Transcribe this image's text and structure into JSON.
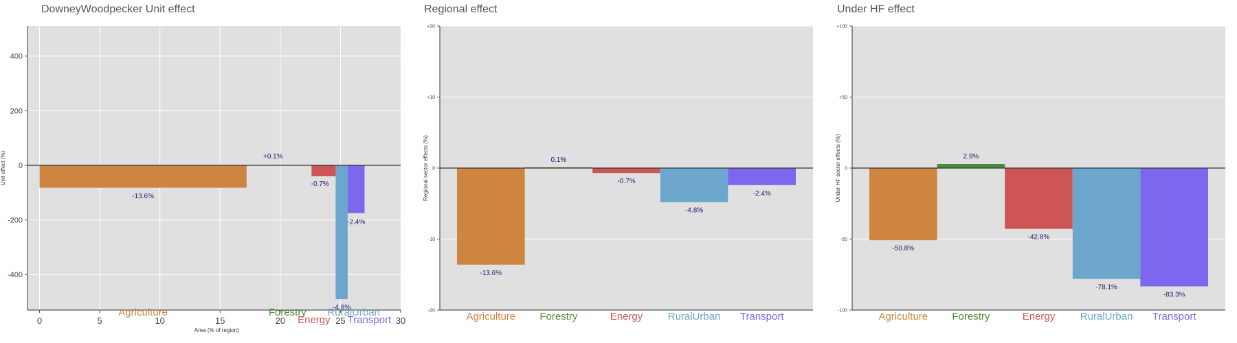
{
  "chart_data": [
    {
      "type": "bar",
      "title": "DowneyWoodpecker Unit effect",
      "xlabel": "Area (% of region)",
      "ylabel": "Unit effect (%)",
      "xlim": [
        -1,
        30
      ],
      "ylim": [
        -530,
        510
      ],
      "xticks": [
        "0",
        "5",
        "10",
        "15",
        "20",
        "25",
        "30"
      ],
      "yticks": [
        "400",
        "200",
        "0",
        "-200",
        "-400"
      ],
      "grid": true,
      "categories": [
        "Agriculture",
        "Forestry",
        "Energy",
        "RuralUrban",
        "Transport"
      ],
      "colors": [
        "#CD853F",
        "#4B8B3B",
        "#CD5555",
        "#6CA6CD",
        "#7B68EE"
      ],
      "area_start": [
        0,
        17.2,
        22.6,
        24.6,
        25.6
      ],
      "area_width": [
        17.2,
        0.1,
        2.0,
        1.0,
        1.4
      ],
      "values": [
        -82,
        1,
        -40,
        -490,
        -175
      ],
      "labels": [
        "-13.6%",
        "+0.1%",
        "-0.7%",
        "-4.8%",
        "-2.4%"
      ]
    },
    {
      "type": "bar",
      "title": "Regional effect",
      "xlabel": "",
      "ylabel": "Regional sector effects (%)",
      "ylim": [
        -20,
        20
      ],
      "yticks": [
        "+20",
        "+10",
        "0",
        "-10",
        "-20"
      ],
      "grid": true,
      "categories": [
        "Agriculture",
        "Forestry",
        "Energy",
        "RuralUrban",
        "Transport"
      ],
      "colors": [
        "#CD853F",
        "#4B8B3B",
        "#CD5555",
        "#6CA6CD",
        "#7B68EE"
      ],
      "values": [
        -13.6,
        0.1,
        -0.7,
        -4.8,
        -2.4
      ],
      "labels": [
        "-13.6%",
        "0.1%",
        "-0.7%",
        "-4.8%",
        "-2.4%"
      ]
    },
    {
      "type": "bar",
      "title": "Under HF effect",
      "xlabel": "",
      "ylabel": "Under HF sector effects (%)",
      "ylim": [
        -100,
        100
      ],
      "yticks": [
        "+100",
        "+50",
        "0",
        "-50",
        "-100"
      ],
      "grid": true,
      "categories": [
        "Agriculture",
        "Forestry",
        "Energy",
        "RuralUrban",
        "Transport"
      ],
      "colors": [
        "#CD853F",
        "#4B8B3B",
        "#CD5555",
        "#6CA6CD",
        "#7B68EE"
      ],
      "values": [
        -50.8,
        2.9,
        -42.8,
        -78.1,
        -83.3
      ],
      "labels": [
        "-50.8%",
        "2.9%",
        "-42.8%",
        "-78.1%",
        "-83.3%"
      ]
    }
  ]
}
